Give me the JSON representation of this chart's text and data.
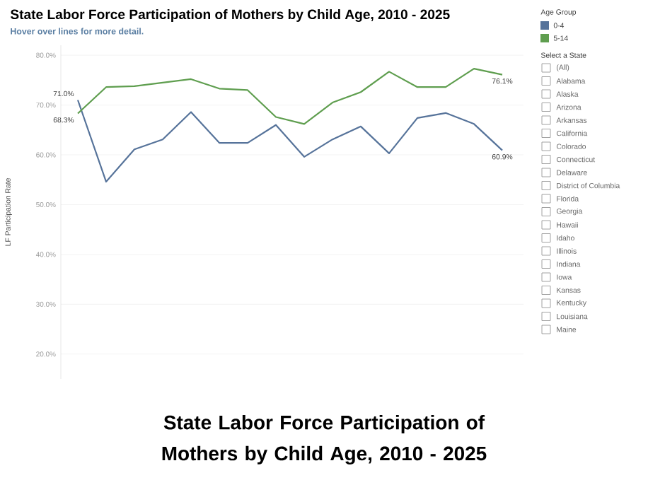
{
  "chart_data": {
    "type": "line",
    "title": "State Labor Force Participation of Mothers by Child Age, 2010 - 2025",
    "subtitle": "Hover over lines for more detail.",
    "ylabel": "LF Participation Rate",
    "legend_title": "Age Group",
    "categories": [
      null,
      null,
      null,
      null,
      null,
      null,
      null,
      null,
      null,
      null,
      null,
      null,
      null,
      null,
      null,
      null
    ],
    "series": [
      {
        "name": "0-4",
        "color": "#56739a",
        "values": [
          71.0,
          54.6,
          61.1,
          63.1,
          68.6,
          62.4,
          62.4,
          66.0,
          59.6,
          63.1,
          65.7,
          60.3,
          67.4,
          68.4,
          66.2,
          60.9
        ],
        "value_labels": [
          "71.0%",
          null,
          null,
          null,
          null,
          null,
          null,
          null,
          null,
          null,
          null,
          null,
          null,
          null,
          null,
          "60.9%"
        ]
      },
      {
        "name": "5-14",
        "color": "#5f9e4f",
        "values": [
          68.3,
          73.6,
          73.8,
          74.5,
          75.2,
          73.3,
          73.0,
          67.6,
          66.2,
          70.5,
          72.6,
          76.7,
          73.6,
          73.6,
          77.3,
          76.1
        ],
        "value_labels": [
          "68.3%",
          null,
          null,
          null,
          null,
          null,
          null,
          null,
          null,
          null,
          null,
          null,
          null,
          null,
          null,
          "76.1%"
        ]
      }
    ],
    "ylim": [
      15,
      82
    ],
    "yticks": [
      {
        "value": 20,
        "label": "20.0%"
      },
      {
        "value": 30,
        "label": "30.0%"
      },
      {
        "value": 40,
        "label": "40.0%"
      },
      {
        "value": 50,
        "label": "50.0%"
      },
      {
        "value": 60,
        "label": "60.0%"
      },
      {
        "value": 70,
        "label": "70.0%"
      },
      {
        "value": 80,
        "label": "80.0%"
      }
    ],
    "tick_labels": "y",
    "grid": "y",
    "legend": "top right",
    "line_style": "solid",
    "annotations": [
      "State Labor Force Participation of Mothers by Child Age, 2010 - 2025",
      "Select a State",
      "(All)",
      "Alabama",
      "Alaska",
      "Arizona",
      "Arkansas",
      "California",
      "Colorado",
      "Connecticut",
      "Delaware",
      "District of Columbia",
      "Florida",
      "Georgia",
      "Hawaii",
      "Idaho",
      "Illinois",
      "Indiana",
      "Iowa",
      "Kansas",
      "Kentucky",
      "Louisiana",
      "Maine"
    ]
  }
}
